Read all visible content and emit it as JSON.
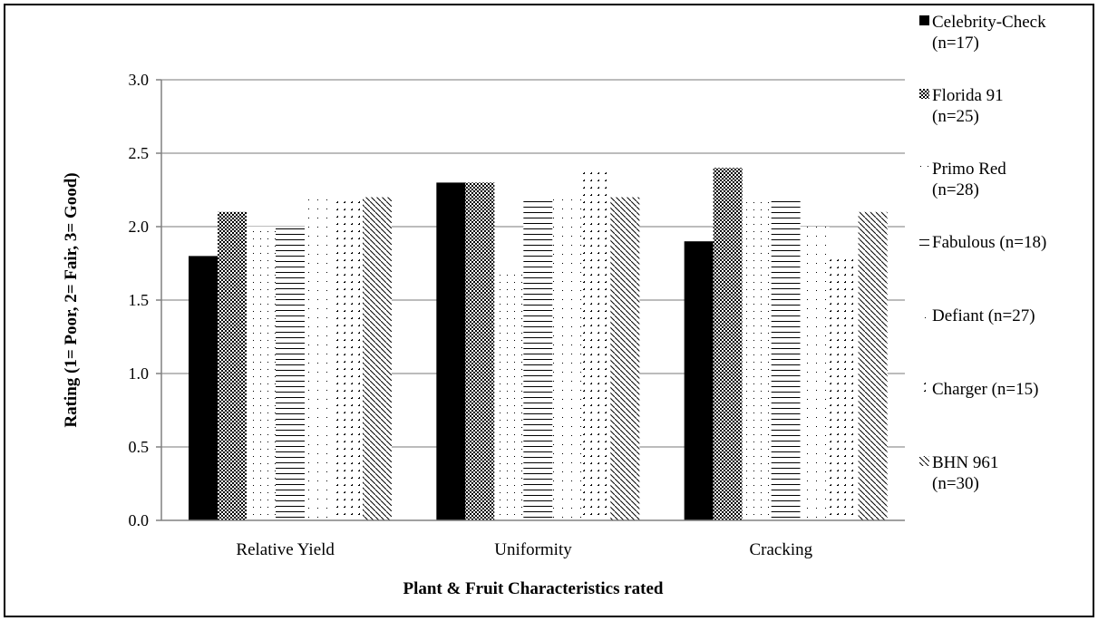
{
  "chart_data": {
    "type": "bar",
    "categories": [
      "Relative Yield",
      "Uniformity",
      "Cracking"
    ],
    "series": [
      {
        "name": "Celebrity-Check",
        "name_line2": "(n=17)",
        "values": [
          1.8,
          2.3,
          1.9
        ],
        "color": "#000000",
        "pattern": "solid"
      },
      {
        "name": "Florida 91",
        "name_line2": "(n=25)",
        "values": [
          2.1,
          2.3,
          2.4
        ],
        "color": "#000000",
        "pattern": "checker"
      },
      {
        "name": "Primo Red",
        "name_line2": "(n=28)",
        "values": [
          2.0,
          1.7,
          2.2
        ],
        "color": "#000000",
        "pattern": "sparse"
      },
      {
        "name": "Fabulous (n=18)",
        "name_line2": "",
        "values": [
          2.0,
          2.2,
          2.2
        ],
        "color": "#000000",
        "pattern": "hbar"
      },
      {
        "name": "Defiant (n=27)",
        "name_line2": "",
        "values": [
          2.2,
          2.2,
          2.0
        ],
        "color": "#000000",
        "pattern": "dot"
      },
      {
        "name": "Charger (n=15)",
        "name_line2": "",
        "values": [
          2.2,
          2.4,
          1.8
        ],
        "color": "#000000",
        "pattern": "corner"
      },
      {
        "name": "BHN 961",
        "name_line2": "(n=30)",
        "values": [
          2.2,
          2.2,
          2.1
        ],
        "color": "#000000",
        "pattern": "diagonal"
      }
    ],
    "ylabel": "Rating (1= Poor, 2= Fair, 3= Good)",
    "xlabel": "Plant & Fruit Characteristics rated",
    "ylim": [
      0,
      3
    ],
    "yticks": [
      "0.0",
      "0.5",
      "1.0",
      "1.5",
      "2.0",
      "2.5",
      "3.0"
    ],
    "grid": true,
    "legend_position": "right",
    "gridline_color": "#a6a6a6"
  }
}
